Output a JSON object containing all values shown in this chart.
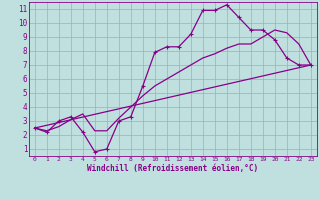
{
  "xlabel": "Windchill (Refroidissement éolien,°C)",
  "xlim": [
    -0.5,
    23.5
  ],
  "ylim": [
    0.5,
    11.5
  ],
  "xticks": [
    0,
    1,
    2,
    3,
    4,
    5,
    6,
    7,
    8,
    9,
    10,
    11,
    12,
    13,
    14,
    15,
    16,
    17,
    18,
    19,
    20,
    21,
    22,
    23
  ],
  "yticks": [
    1,
    2,
    3,
    4,
    5,
    6,
    7,
    8,
    9,
    10,
    11
  ],
  "background_color": "#c0e0e0",
  "grid_color": "#a0a8c8",
  "line_color": "#880088",
  "line1_x": [
    0,
    1,
    2,
    3,
    4,
    5,
    6,
    7,
    8,
    9,
    10,
    11,
    12,
    13,
    14,
    15,
    16,
    17,
    18,
    19,
    20,
    21,
    22,
    23
  ],
  "line1_y": [
    2.5,
    2.2,
    3.0,
    3.3,
    2.2,
    0.8,
    1.0,
    3.0,
    3.3,
    5.5,
    7.9,
    8.3,
    8.3,
    9.2,
    10.9,
    10.9,
    11.3,
    10.4,
    9.5,
    9.5,
    8.8,
    7.5,
    7.0,
    7.0
  ],
  "line2_x": [
    0,
    23
  ],
  "line2_y": [
    2.5,
    7.0
  ],
  "line3_x": [
    0,
    1,
    2,
    3,
    4,
    5,
    6,
    7,
    8,
    9,
    10,
    11,
    12,
    13,
    14,
    15,
    16,
    17,
    18,
    19,
    20,
    21,
    22,
    23
  ],
  "line3_y": [
    2.5,
    2.3,
    2.6,
    3.1,
    3.5,
    2.3,
    2.3,
    3.2,
    4.0,
    4.8,
    5.5,
    6.0,
    6.5,
    7.0,
    7.5,
    7.8,
    8.2,
    8.5,
    8.5,
    9.0,
    9.5,
    9.3,
    8.5,
    7.0
  ]
}
